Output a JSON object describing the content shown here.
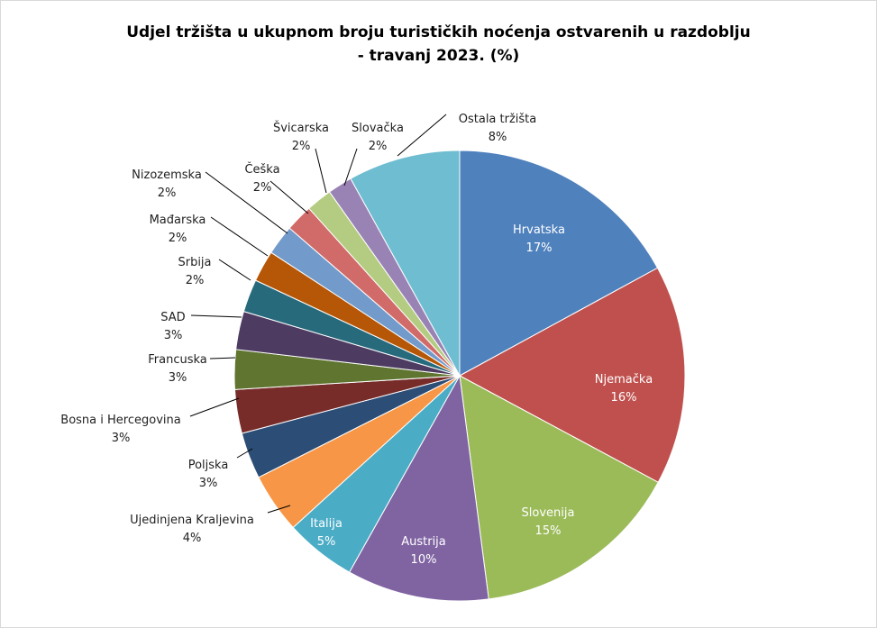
{
  "chart_data": {
    "type": "pie",
    "title_line1": "Udjel tržišta u ukupnom broju turističkih noćenja ostvarenih u razdoblju",
    "title_line2": "- travanj 2023. (%)",
    "slices": [
      {
        "name": "Hrvatska",
        "label": "17%",
        "value": 17.4,
        "color": "#4f81bd",
        "text_color": "#ffffff"
      },
      {
        "name": "Njemačka",
        "label": "16%",
        "value": 16.1,
        "color": "#c0504d",
        "text_color": "#ffffff"
      },
      {
        "name": "Slovenija",
        "label": "15%",
        "value": 15.4,
        "color": "#9bbb59",
        "text_color": "#ffffff"
      },
      {
        "name": "Austrija",
        "label": "10%",
        "value": 10.4,
        "color": "#8064a2",
        "text_color": "#ffffff"
      },
      {
        "name": "Italija",
        "label": "5%",
        "value": 5.2,
        "color": "#4bacc6",
        "text_color": "#ffffff"
      },
      {
        "name": "Ujedinjena Kraljevina",
        "label": "4%",
        "value": 4.4,
        "color": "#f79646",
        "text_color": "#1f1f1f"
      },
      {
        "name": "Poljska",
        "label": "3%",
        "value": 3.4,
        "color": "#2c4d75",
        "text_color": "#1f1f1f"
      },
      {
        "name": "Bosna i Hercegovina",
        "label": "3%",
        "value": 3.2,
        "color": "#772c2a",
        "text_color": "#1f1f1f"
      },
      {
        "name": "Francuska",
        "label": "3%",
        "value": 2.9,
        "color": "#5f7530",
        "text_color": "#1f1f1f"
      },
      {
        "name": "SAD",
        "label": "3%",
        "value": 2.8,
        "color": "#4d3b62",
        "text_color": "#1f1f1f"
      },
      {
        "name": "Srbija",
        "label": "2%",
        "value": 2.4,
        "color": "#276a7c",
        "text_color": "#1f1f1f"
      },
      {
        "name": "Mađarska",
        "label": "2%",
        "value": 2.3,
        "color": "#b65708",
        "text_color": "#1f1f1f"
      },
      {
        "name": "Nizozemska",
        "label": "2%",
        "value": 2.2,
        "color": "#729aca",
        "text_color": "#1f1f1f"
      },
      {
        "name": "Češka",
        "label": "2%",
        "value": 2.0,
        "color": "#d16b69",
        "text_color": "#1f1f1f"
      },
      {
        "name": "Švicarska",
        "label": "2%",
        "value": 1.9,
        "color": "#b4cc82",
        "text_color": "#1f1f1f"
      },
      {
        "name": "Slovačka",
        "label": "2%",
        "value": 1.8,
        "color": "#9983b5",
        "text_color": "#1f1f1f"
      },
      {
        "name": "Ostala tržišta",
        "label": "8%",
        "value": 8.2,
        "color": "#6fbdd1",
        "text_color": "#1f1f1f"
      }
    ]
  }
}
